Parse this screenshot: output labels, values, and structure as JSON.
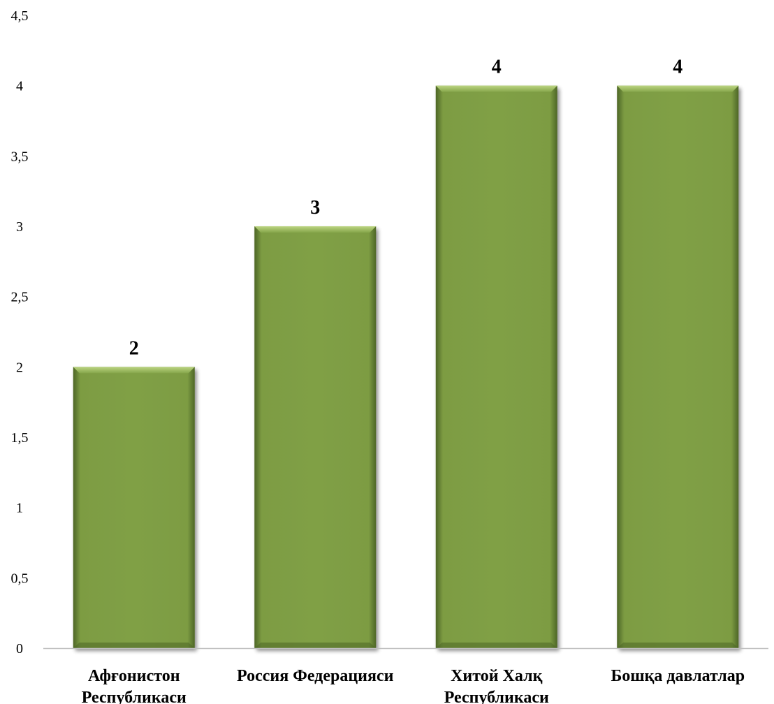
{
  "chart_data": {
    "type": "bar",
    "categories": [
      [
        "Афғонистон",
        "Республикаси"
      ],
      [
        "Россия Федерацияси"
      ],
      [
        "Хитой Халқ",
        "Республикаси"
      ],
      [
        "Бошқа давлатлар"
      ]
    ],
    "values": [
      2,
      3,
      4,
      4
    ],
    "value_labels": [
      "2",
      "3",
      "4",
      "4"
    ],
    "ylim": [
      0,
      4.5
    ],
    "yticks": [
      0,
      0.5,
      1,
      1.5,
      2,
      2.5,
      3,
      3.5,
      4,
      4.5
    ],
    "ytick_labels": [
      "0",
      "0,5",
      "1",
      "1,5",
      "2",
      "2,5",
      "3",
      "3,5",
      "4",
      "4,5"
    ],
    "grid": false,
    "legend": "none",
    "colors": {
      "bar": "#80a045",
      "bar_light": "#a9c46a",
      "bar_dark": "#4d6626",
      "axis": "#bfbfbf"
    }
  }
}
